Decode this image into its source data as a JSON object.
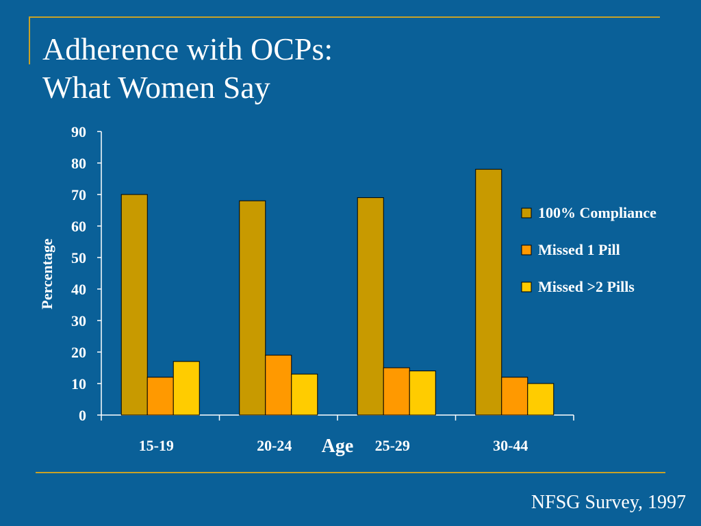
{
  "slide": {
    "title_line1": "Adherence with OCPs:",
    "title_line2": "What Women Say",
    "source": "NFSG Survey, 1997",
    "colors": {
      "background": "#0A6098",
      "frame": "#C9A227",
      "text": "#FFFFFF"
    }
  },
  "chart_data": {
    "type": "bar",
    "xlabel": "Age",
    "ylabel": "Percentage",
    "ylim": [
      0,
      90
    ],
    "yticks": [
      0,
      10,
      20,
      30,
      40,
      50,
      60,
      70,
      80,
      90
    ],
    "categories": [
      "15-19",
      "20-24",
      "25-29",
      "30-44"
    ],
    "series": [
      {
        "name": "100% Compliance",
        "color": "#C89A00",
        "values": [
          70,
          68,
          69,
          78
        ]
      },
      {
        "name": "Missed 1 Pill",
        "color": "#FF9900",
        "values": [
          12,
          19,
          15,
          12
        ]
      },
      {
        "name": "Missed >2 Pills",
        "color": "#FFCC00",
        "values": [
          17,
          13,
          14,
          10
        ]
      }
    ],
    "legend_position": "right",
    "grid": false
  }
}
